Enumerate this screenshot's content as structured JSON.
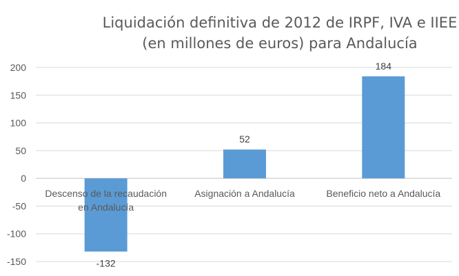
{
  "chart_data": {
    "type": "bar",
    "title": [
      "Liquidación definitiva de 2012 de IRPF, IVA e IIEE",
      "(en millones de euros) para Andalucía"
    ],
    "xlabel": "",
    "ylabel": "",
    "categories": [
      [
        "Descenso de la recaudación",
        "en Andalucía"
      ],
      [
        "Asignación a Andalucía"
      ],
      [
        "Beneficio neto a Andalucía"
      ]
    ],
    "values": [
      -132,
      52,
      184
    ],
    "data_labels": [
      "-132",
      "52",
      "184"
    ],
    "ylim": [
      -150,
      200
    ],
    "yticks": [
      200,
      150,
      100,
      50,
      0,
      -50,
      -100,
      -150
    ],
    "grid": true,
    "legend": "none",
    "bar_color": "#5B9BD5"
  }
}
